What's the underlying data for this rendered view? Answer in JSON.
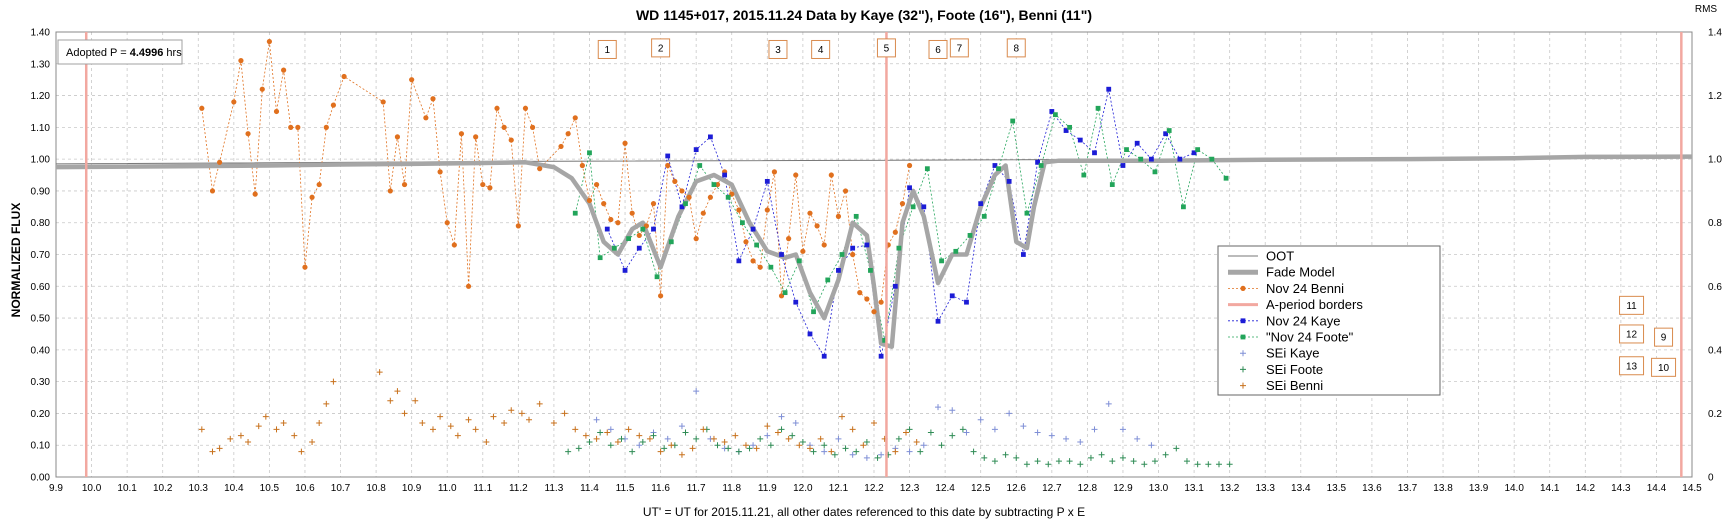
{
  "chart_data": {
    "type": "scatter",
    "title": "WD 1145+017, 2015.11.24 Data by Kaye (32\"), Foote (16\"), Benni (11\")",
    "xlabel": "UT' = UT for 2015.11.21, all other dates referenced to this date by subtracting P x E",
    "ylabel": "NORMALIZED FLUX",
    "right_axis_label": "RMS",
    "xlim": [
      9.9,
      14.5
    ],
    "ylim": [
      0.0,
      1.4
    ],
    "y2lim": [
      0.0,
      1.4
    ],
    "x_ticks": [
      "9.9",
      "10.0",
      "10.1",
      "10.2",
      "10.3",
      "10.4",
      "10.5",
      "10.6",
      "10.7",
      "10.8",
      "10.9",
      "11.0",
      "11.1",
      "11.2",
      "11.3",
      "11.4",
      "11.5",
      "11.6",
      "11.7",
      "11.8",
      "11.9",
      "12.0",
      "12.1",
      "12.2",
      "12.3",
      "12.4",
      "12.5",
      "12.6",
      "12.7",
      "12.8",
      "12.9",
      "13.0",
      "13.1",
      "13.2",
      "13.3",
      "13.4",
      "13.5",
      "13.6",
      "13.7",
      "13.8",
      "13.9",
      "14.0",
      "14.1",
      "14.2",
      "14.3",
      "14.4",
      "14.5"
    ],
    "y_ticks": [
      "0.00",
      "0.10",
      "0.20",
      "0.30",
      "0.40",
      "0.50",
      "0.60",
      "0.70",
      "0.80",
      "0.90",
      "1.00",
      "1.10",
      "1.20",
      "1.30",
      "1.40"
    ],
    "y2_ticks": [
      "0",
      "0.2",
      "0.4",
      "0.6",
      "0.8",
      "1.0",
      "1.2",
      "1.4"
    ],
    "grid": true,
    "annotation": {
      "prefix": "Adopted P = ",
      "value": "4.4996",
      "unit": " hrs"
    },
    "period_borders": [
      9.985,
      14.47
    ],
    "event_marker": 12.235,
    "event_boxes": [
      {
        "label": "1",
        "x": 11.45,
        "y": 1.345
      },
      {
        "label": "2",
        "x": 11.6,
        "y": 1.35
      },
      {
        "label": "3",
        "x": 11.93,
        "y": 1.345
      },
      {
        "label": "4",
        "x": 12.05,
        "y": 1.345
      },
      {
        "label": "5",
        "x": 12.235,
        "y": 1.35
      },
      {
        "label": "6",
        "x": 12.38,
        "y": 1.345
      },
      {
        "label": "7",
        "x": 12.44,
        "y": 1.35
      },
      {
        "label": "8",
        "x": 12.6,
        "y": 1.35
      },
      {
        "label": "11",
        "x": 14.33,
        "y": 0.54
      },
      {
        "label": "12",
        "x": 14.33,
        "y": 0.45
      },
      {
        "label": "9",
        "x": 14.42,
        "y": 0.44
      },
      {
        "label": "13",
        "x": 14.33,
        "y": 0.35
      },
      {
        "label": "10",
        "x": 14.42,
        "y": 0.345
      }
    ],
    "legend_position": "right",
    "legend": [
      "OOT",
      "Fade Model",
      "Nov 24 Benni",
      "A-period borders",
      "Nov 24 Kaye",
      "\"Nov 24 Foote\"",
      "SEi Kaye",
      "SEi Foote",
      "SEi Benni"
    ],
    "colors": {
      "oot": "#777777",
      "model": "#a6a6a6",
      "benni": "#e0701e",
      "border": "#f2a8a0",
      "kaye": "#1c1cd6",
      "foote": "#22a55a",
      "sei_kaye": "#7f8fd6",
      "sei_foote": "#2f8c55",
      "sei_benni": "#c8711c"
    },
    "series": [
      {
        "key": "oot",
        "x": [
          9.9,
          11.2,
          14.5
        ],
        "y": [
          0.985,
          0.993,
          1.005
        ]
      },
      {
        "key": "model",
        "x": [
          9.9,
          10.3,
          10.5,
          10.7,
          10.9,
          11.1,
          11.22,
          11.3,
          11.35,
          11.4,
          11.44,
          11.48,
          11.52,
          11.55,
          11.6,
          11.65,
          11.7,
          11.75,
          11.8,
          11.85,
          11.9,
          11.95,
          11.98,
          12.02,
          12.06,
          12.1,
          12.14,
          12.18,
          12.2,
          12.22,
          12.25,
          12.28,
          12.31,
          12.34,
          12.38,
          12.42,
          12.46,
          12.5,
          12.54,
          12.57,
          12.6,
          12.63,
          12.65,
          12.68,
          12.72,
          12.8,
          13.0,
          13.3,
          13.7,
          14.0,
          14.2,
          14.5
        ],
        "y": [
          0.975,
          0.978,
          0.98,
          0.983,
          0.985,
          0.988,
          0.99,
          0.975,
          0.94,
          0.86,
          0.74,
          0.7,
          0.78,
          0.8,
          0.66,
          0.82,
          0.93,
          0.95,
          0.92,
          0.8,
          0.71,
          0.69,
          0.7,
          0.58,
          0.5,
          0.62,
          0.8,
          0.76,
          0.6,
          0.42,
          0.41,
          0.8,
          0.9,
          0.82,
          0.61,
          0.7,
          0.7,
          0.85,
          0.95,
          0.98,
          0.74,
          0.72,
          0.85,
          0.99,
          0.995,
          0.995,
          0.995,
          0.998,
          1.0,
          1.003,
          1.007,
          1.008
        ]
      },
      {
        "key": "benni",
        "x": [
          10.31,
          10.34,
          10.36,
          10.4,
          10.42,
          10.44,
          10.46,
          10.48,
          10.5,
          10.52,
          10.54,
          10.56,
          10.58,
          10.6,
          10.62,
          10.64,
          10.66,
          10.68,
          10.71,
          10.82,
          10.84,
          10.86,
          10.88,
          10.9,
          10.94,
          10.96,
          10.98,
          11.0,
          11.02,
          11.04,
          11.06,
          11.08,
          11.1,
          11.12,
          11.14,
          11.16,
          11.18,
          11.2,
          11.22,
          11.24,
          11.26,
          11.32,
          11.34,
          11.36,
          11.38,
          11.4,
          11.42,
          11.44,
          11.46,
          11.48,
          11.5,
          11.52,
          11.54,
          11.56,
          11.58,
          11.6,
          11.62,
          11.64,
          11.66,
          11.68,
          11.7,
          11.72,
          11.74,
          11.76,
          11.78,
          11.8,
          11.82,
          11.84,
          11.86,
          11.88,
          11.9,
          11.92,
          11.94,
          11.96,
          11.98,
          12.0,
          12.02,
          12.04,
          12.06,
          12.08,
          12.1,
          12.12,
          12.14,
          12.16,
          12.18,
          12.2,
          12.22,
          12.24,
          12.26,
          12.28,
          12.3
        ],
        "y": [
          1.16,
          0.9,
          0.99,
          1.18,
          1.31,
          1.08,
          0.89,
          1.22,
          1.37,
          1.15,
          1.28,
          1.1,
          1.1,
          0.66,
          0.88,
          0.92,
          1.1,
          1.17,
          1.26,
          1.18,
          0.9,
          1.07,
          0.92,
          1.25,
          1.13,
          1.19,
          0.96,
          0.8,
          0.73,
          1.08,
          0.6,
          1.07,
          0.92,
          0.91,
          1.16,
          1.1,
          1.06,
          0.79,
          1.16,
          1.1,
          0.97,
          1.04,
          1.08,
          1.13,
          0.98,
          0.87,
          0.92,
          0.86,
          0.81,
          0.8,
          1.05,
          0.83,
          0.76,
          0.79,
          0.86,
          0.57,
          0.98,
          0.93,
          0.9,
          0.88,
          0.75,
          0.83,
          0.88,
          0.92,
          0.96,
          0.89,
          0.84,
          0.74,
          0.68,
          0.66,
          0.84,
          0.96,
          0.57,
          0.75,
          0.95,
          0.71,
          0.83,
          0.79,
          0.73,
          0.95,
          0.82,
          0.9,
          0.7,
          0.58,
          0.56,
          0.52,
          0.55,
          0.73,
          0.77,
          0.86,
          0.98
        ]
      },
      {
        "key": "kaye",
        "x": [
          11.45,
          11.5,
          11.54,
          11.58,
          11.62,
          11.66,
          11.7,
          11.74,
          11.78,
          11.82,
          11.86,
          11.9,
          11.94,
          11.98,
          12.02,
          12.06,
          12.1,
          12.14,
          12.18,
          12.22,
          12.26,
          12.3,
          12.34,
          12.38,
          12.42,
          12.46,
          12.5,
          12.54,
          12.58,
          12.62,
          12.66,
          12.7,
          12.74,
          12.78,
          12.82,
          12.86,
          12.9,
          12.94,
          12.98,
          13.02,
          13.06,
          13.1
        ],
        "y": [
          0.78,
          0.65,
          0.72,
          0.78,
          1.01,
          0.85,
          1.03,
          1.07,
          0.95,
          0.68,
          0.78,
          0.93,
          0.7,
          0.55,
          0.45,
          0.38,
          0.65,
          0.72,
          0.73,
          0.38,
          0.6,
          0.91,
          0.85,
          0.49,
          0.57,
          0.55,
          0.86,
          0.98,
          0.93,
          0.7,
          0.99,
          1.15,
          1.09,
          1.06,
          1.02,
          1.22,
          0.98,
          1.05,
          1.0,
          1.08,
          1.0,
          1.02
        ]
      },
      {
        "key": "foote",
        "x": [
          11.36,
          11.4,
          11.43,
          11.47,
          11.51,
          11.55,
          11.59,
          11.63,
          11.67,
          11.71,
          11.75,
          11.79,
          11.83,
          11.87,
          11.91,
          11.95,
          11.99,
          12.03,
          12.07,
          12.11,
          12.15,
          12.19,
          12.23,
          12.27,
          12.31,
          12.35,
          12.39,
          12.43,
          12.47,
          12.51,
          12.55,
          12.59,
          12.63,
          12.67,
          12.71,
          12.75,
          12.79,
          12.83,
          12.87,
          12.91,
          12.95,
          12.99,
          13.03,
          13.07,
          13.11,
          13.15,
          13.19
        ],
        "y": [
          0.83,
          1.02,
          0.69,
          0.72,
          0.75,
          0.78,
          0.63,
          0.74,
          0.86,
          0.98,
          0.92,
          0.88,
          0.8,
          0.73,
          0.66,
          0.58,
          0.68,
          0.52,
          0.62,
          0.7,
          0.82,
          0.65,
          0.43,
          0.72,
          0.85,
          0.97,
          0.68,
          0.71,
          0.76,
          0.82,
          0.97,
          1.12,
          0.83,
          0.98,
          1.14,
          1.1,
          0.95,
          1.16,
          0.92,
          1.03,
          1.0,
          0.96,
          1.09,
          0.85,
          1.03,
          1.0,
          0.94
        ]
      },
      {
        "key": "sei_kaye",
        "x": [
          11.42,
          11.46,
          11.5,
          11.54,
          11.58,
          11.62,
          11.66,
          11.7,
          11.74,
          11.78,
          11.82,
          11.86,
          11.9,
          11.94,
          11.98,
          12.02,
          12.06,
          12.1,
          12.14,
          12.18,
          12.22,
          12.26,
          12.3,
          12.34,
          12.38,
          12.42,
          12.46,
          12.5,
          12.54,
          12.58,
          12.62,
          12.66,
          12.7,
          12.74,
          12.78,
          12.82,
          12.86,
          12.9,
          12.94,
          12.98
        ],
        "y": [
          0.18,
          0.15,
          0.12,
          0.1,
          0.14,
          0.12,
          0.16,
          0.27,
          0.12,
          0.09,
          0.08,
          0.1,
          0.13,
          0.19,
          0.17,
          0.1,
          0.08,
          0.12,
          0.07,
          0.06,
          0.07,
          0.09,
          0.08,
          0.1,
          0.22,
          0.21,
          0.14,
          0.18,
          0.15,
          0.2,
          0.16,
          0.14,
          0.13,
          0.12,
          0.11,
          0.15,
          0.23,
          0.15,
          0.12,
          0.1
        ]
      },
      {
        "key": "sei_foote",
        "x": [
          11.34,
          11.37,
          11.4,
          11.43,
          11.46,
          11.49,
          11.52,
          11.55,
          11.58,
          11.61,
          11.64,
          11.67,
          11.7,
          11.73,
          11.76,
          11.79,
          11.82,
          11.85,
          11.88,
          11.91,
          11.94,
          11.97,
          12.0,
          12.03,
          12.06,
          12.09,
          12.12,
          12.15,
          12.18,
          12.21,
          12.24,
          12.27,
          12.3,
          12.33,
          12.36,
          12.39,
          12.42,
          12.45,
          12.48,
          12.51,
          12.54,
          12.57,
          12.6,
          12.63,
          12.66,
          12.69,
          12.72,
          12.75,
          12.78,
          12.81,
          12.84,
          12.87,
          12.9,
          12.93,
          12.96,
          12.99,
          13.02,
          13.05,
          13.08,
          13.11,
          13.14,
          13.17,
          13.2
        ],
        "y": [
          0.08,
          0.09,
          0.11,
          0.14,
          0.1,
          0.12,
          0.08,
          0.11,
          0.13,
          0.09,
          0.1,
          0.14,
          0.12,
          0.15,
          0.1,
          0.09,
          0.08,
          0.09,
          0.12,
          0.1,
          0.15,
          0.13,
          0.11,
          0.08,
          0.1,
          0.07,
          0.09,
          0.08,
          0.11,
          0.06,
          0.07,
          0.12,
          0.15,
          0.08,
          0.14,
          0.1,
          0.13,
          0.15,
          0.08,
          0.06,
          0.05,
          0.07,
          0.06,
          0.04,
          0.05,
          0.04,
          0.05,
          0.05,
          0.04,
          0.06,
          0.07,
          0.05,
          0.06,
          0.05,
          0.04,
          0.05,
          0.07,
          0.09,
          0.05,
          0.04,
          0.04,
          0.04,
          0.04
        ]
      },
      {
        "key": "sei_benni",
        "x": [
          10.31,
          10.34,
          10.36,
          10.39,
          10.42,
          10.44,
          10.47,
          10.49,
          10.52,
          10.54,
          10.57,
          10.59,
          10.62,
          10.64,
          10.66,
          10.68,
          10.81,
          10.84,
          10.86,
          10.88,
          10.91,
          10.93,
          10.96,
          10.98,
          11.01,
          11.03,
          11.06,
          11.08,
          11.11,
          11.13,
          11.16,
          11.18,
          11.21,
          11.23,
          11.26,
          11.3,
          11.33,
          11.36,
          11.39,
          11.42,
          11.45,
          11.48,
          11.51,
          11.54,
          11.57,
          11.6,
          11.63,
          11.66,
          11.69,
          11.72,
          11.75,
          11.78,
          11.81,
          11.84,
          11.87,
          11.9,
          11.93,
          11.96,
          11.99,
          12.02,
          12.05,
          12.08,
          12.11,
          12.14,
          12.17,
          12.2,
          12.23,
          12.26,
          12.29,
          12.32
        ],
        "y": [
          0.15,
          0.08,
          0.09,
          0.12,
          0.13,
          0.11,
          0.16,
          0.19,
          0.15,
          0.17,
          0.13,
          0.08,
          0.11,
          0.17,
          0.23,
          0.3,
          0.33,
          0.24,
          0.27,
          0.2,
          0.24,
          0.17,
          0.15,
          0.19,
          0.16,
          0.13,
          0.18,
          0.15,
          0.11,
          0.19,
          0.17,
          0.21,
          0.2,
          0.18,
          0.23,
          0.17,
          0.2,
          0.15,
          0.13,
          0.12,
          0.14,
          0.11,
          0.15,
          0.13,
          0.12,
          0.08,
          0.1,
          0.07,
          0.09,
          0.15,
          0.12,
          0.11,
          0.13,
          0.1,
          0.09,
          0.16,
          0.14,
          0.12,
          0.1,
          0.09,
          0.12,
          0.08,
          0.19,
          0.15,
          0.1,
          0.17,
          0.12,
          0.08,
          0.14,
          0.11
        ]
      }
    ]
  }
}
